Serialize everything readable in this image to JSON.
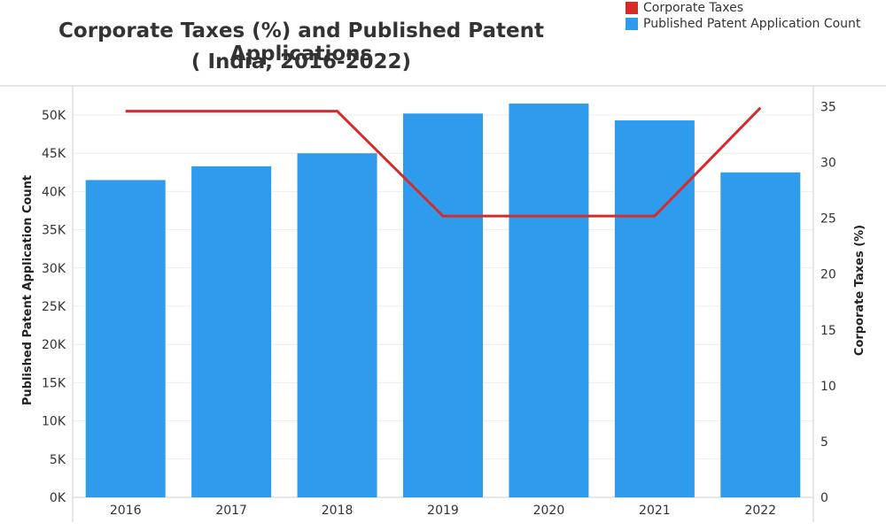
{
  "chart_data": {
    "type": "bar",
    "title": "Corporate Taxes (%) and Published Patent Applications",
    "subtitle": "( India, 2016-2022)",
    "categories": [
      "2016",
      "2017",
      "2018",
      "2019",
      "2020",
      "2021",
      "2022"
    ],
    "series": [
      {
        "name": "Published Patent Application Count",
        "type": "bar",
        "axis": "left",
        "color": "#2e9bec",
        "values": [
          41500,
          43300,
          45000,
          50200,
          51500,
          49300,
          42500
        ]
      },
      {
        "name": "Corporate Taxes",
        "type": "line",
        "axis": "right",
        "color": "#d62b2b",
        "values": [
          34.6,
          34.6,
          34.6,
          25.2,
          25.2,
          25.2,
          34.9
        ]
      }
    ],
    "ylabel": "Published Patent Application Count",
    "ylim": [
      0,
      53000
    ],
    "yticks": [
      "0K",
      "5K",
      "10K",
      "15K",
      "20K",
      "25K",
      "30K",
      "35K",
      "40K",
      "45K",
      "50K"
    ],
    "y2label": "Corporate Taxes (%)",
    "y2lim": [
      0,
      36.5
    ],
    "y2ticks": [
      "0",
      "5",
      "10",
      "15",
      "20",
      "25",
      "30",
      "35"
    ],
    "legend_position": "top-right",
    "grid": true
  }
}
